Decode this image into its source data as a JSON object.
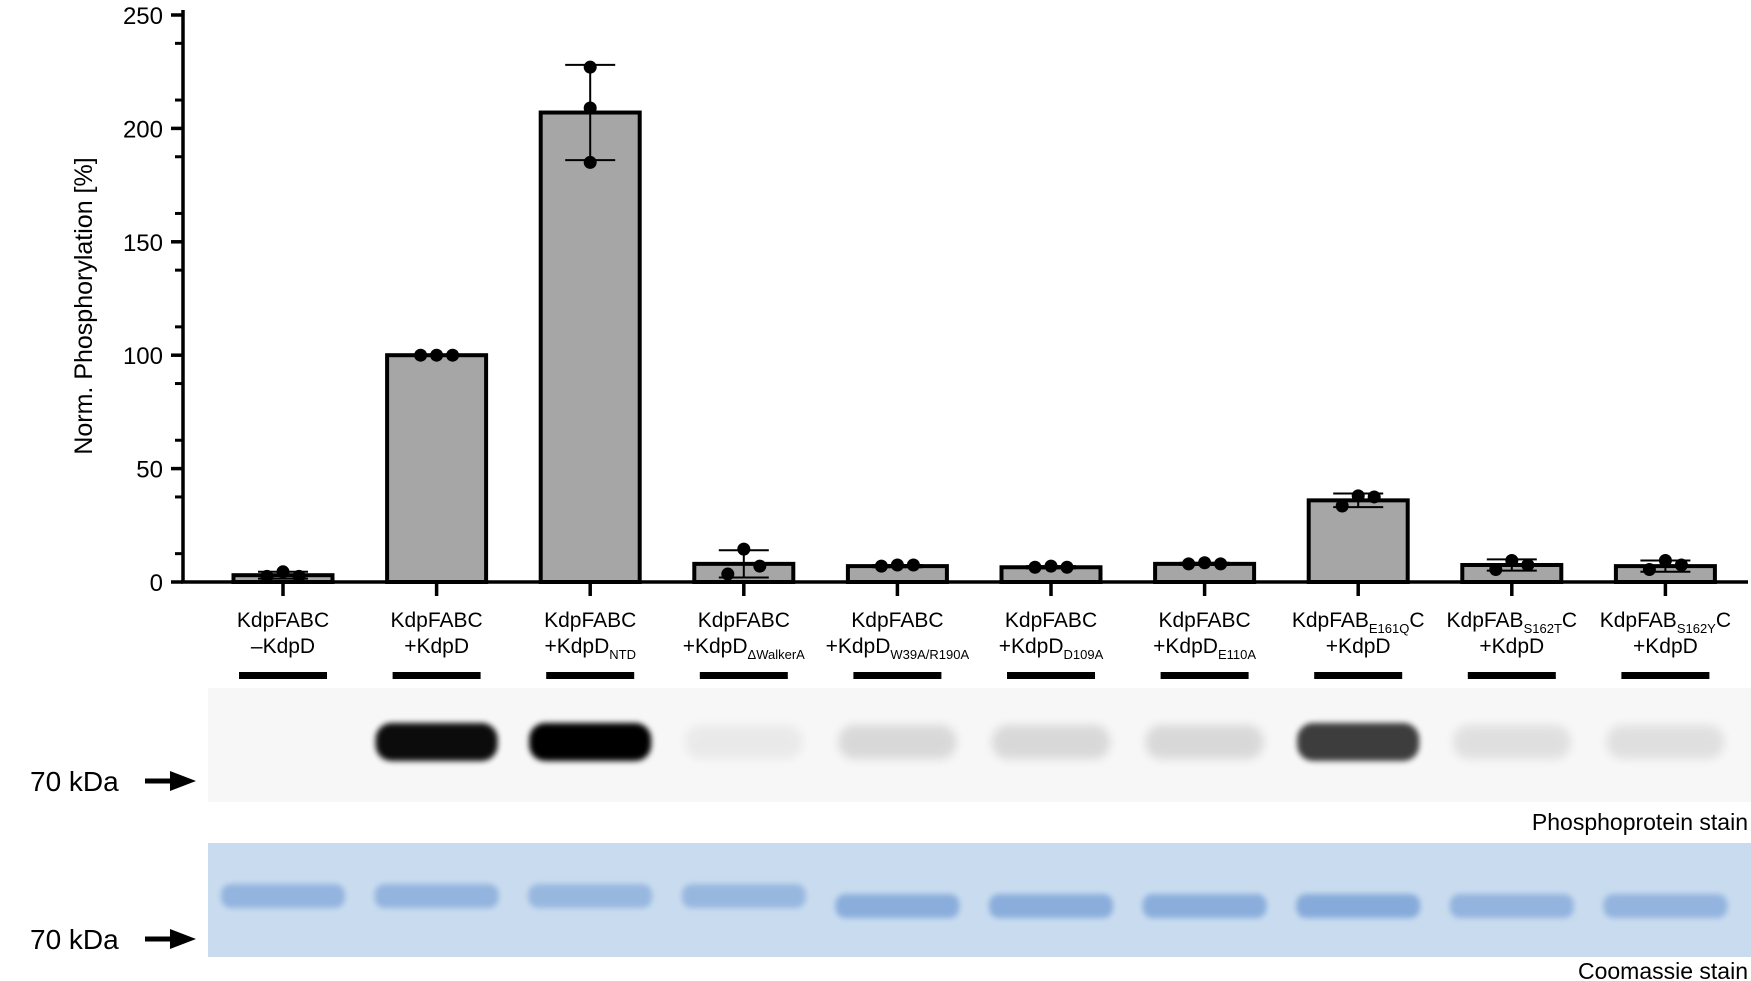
{
  "chart_data": {
    "type": "bar",
    "ylabel": "Norm. Phosphorylation [%]",
    "ylim": [
      0,
      250
    ],
    "yticks": [
      0,
      50,
      100,
      150,
      200,
      250
    ],
    "grid": false,
    "colors": {
      "bar_fill": "#a6a6a6",
      "bar_edge": "#000000",
      "point": "#000000"
    },
    "categories": [
      {
        "line1": [
          {
            "t": "KdpFABC"
          }
        ],
        "line2": [
          {
            "t": "–KdpD"
          }
        ]
      },
      {
        "line1": [
          {
            "t": "KdpFABC"
          }
        ],
        "line2": [
          {
            "t": "+KdpD"
          }
        ]
      },
      {
        "line1": [
          {
            "t": "KdpFABC"
          }
        ],
        "line2": [
          {
            "t": "+KdpD"
          },
          {
            "t": "NTD",
            "sub": true
          }
        ]
      },
      {
        "line1": [
          {
            "t": "KdpFABC"
          }
        ],
        "line2": [
          {
            "t": "+KdpD"
          },
          {
            "t": "ΔWalkerA",
            "sub": true
          }
        ]
      },
      {
        "line1": [
          {
            "t": "KdpFABC"
          }
        ],
        "line2": [
          {
            "t": "+KdpD"
          },
          {
            "t": "W39A/R190A",
            "sub": true
          }
        ]
      },
      {
        "line1": [
          {
            "t": "KdpFABC"
          }
        ],
        "line2": [
          {
            "t": "+KdpD"
          },
          {
            "t": "D109A",
            "sub": true
          }
        ]
      },
      {
        "line1": [
          {
            "t": "KdpFABC"
          }
        ],
        "line2": [
          {
            "t": "+KdpD"
          },
          {
            "t": "E110A",
            "sub": true
          }
        ]
      },
      {
        "line1": [
          {
            "t": "KdpFAB"
          },
          {
            "t": "E161Q",
            "sub": true
          },
          {
            "t": "C"
          }
        ],
        "line2": [
          {
            "t": "+KdpD"
          }
        ]
      },
      {
        "line1": [
          {
            "t": "KdpFAB"
          },
          {
            "t": "S162T",
            "sub": true
          },
          {
            "t": "C"
          }
        ],
        "line2": [
          {
            "t": "+KdpD"
          }
        ]
      },
      {
        "line1": [
          {
            "t": "KdpFAB"
          },
          {
            "t": "S162Y",
            "sub": true
          },
          {
            "t": "C"
          }
        ],
        "line2": [
          {
            "t": "+KdpD"
          }
        ]
      }
    ],
    "values": [
      3,
      100,
      207,
      8,
      7,
      6.5,
      8,
      36,
      7.5,
      7
    ],
    "error": [
      1.5,
      0,
      21,
      6,
      0.5,
      0.5,
      0.5,
      3,
      2.5,
      2.5
    ],
    "points": [
      [
        2.5,
        4.5,
        2.5
      ],
      [
        100,
        100,
        100
      ],
      [
        227,
        209,
        185
      ],
      [
        3.5,
        14.5,
        7
      ],
      [
        7,
        7.5,
        7.5
      ],
      [
        6.5,
        7,
        6.5
      ],
      [
        8,
        8.5,
        8
      ],
      [
        33.5,
        38,
        37.5
      ],
      [
        5.5,
        9.5,
        7.5
      ],
      [
        5.5,
        9.5,
        7.5
      ]
    ]
  },
  "gels": {
    "marker_label": "70 kDa",
    "phospho_label": "Phosphoprotein stain",
    "coomassie_label": "Coomassie stain",
    "colors": {
      "phospho_bg": "#f7f7f7",
      "coomassie_bg": "#c9dcef",
      "coomassie_band": "#6f9ad3",
      "phospho_band": "#000000"
    },
    "phospho_intensity": [
      0,
      0.95,
      1.0,
      0.05,
      0.12,
      0.12,
      0.12,
      0.75,
      0.09,
      0.09
    ],
    "coomassie_intensity": [
      0.6,
      0.6,
      0.55,
      0.55,
      0.7,
      0.7,
      0.7,
      0.75,
      0.6,
      0.6
    ]
  }
}
